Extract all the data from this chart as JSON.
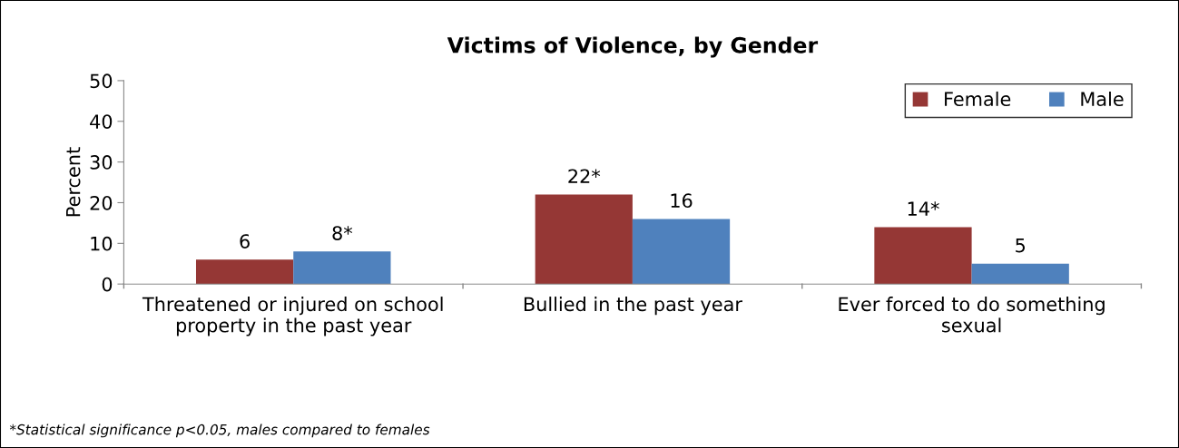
{
  "chart_data": {
    "type": "bar",
    "title": "Victims of Violence, by Gender",
    "ylabel": "Percent",
    "categories": [
      "Threatened or injured on school\nproperty in the past year",
      "Bullied in the past year",
      "Ever forced to do something\nsexual"
    ],
    "series": [
      {
        "name": "Female",
        "color": "#953735",
        "values": [
          6,
          22,
          14
        ],
        "value_labels": [
          "6",
          "22*",
          "14*"
        ]
      },
      {
        "name": "Male",
        "color": "#4f81bd",
        "values": [
          8,
          16,
          5
        ],
        "value_labels": [
          "8*",
          "16",
          "5"
        ]
      }
    ],
    "ylim": [
      0,
      50
    ],
    "yticks": [
      0,
      10,
      20,
      30,
      40,
      50
    ],
    "grid": false,
    "legend": "top right",
    "annotations": [
      "*Statistical significance p<0.05, males compared to females"
    ]
  }
}
